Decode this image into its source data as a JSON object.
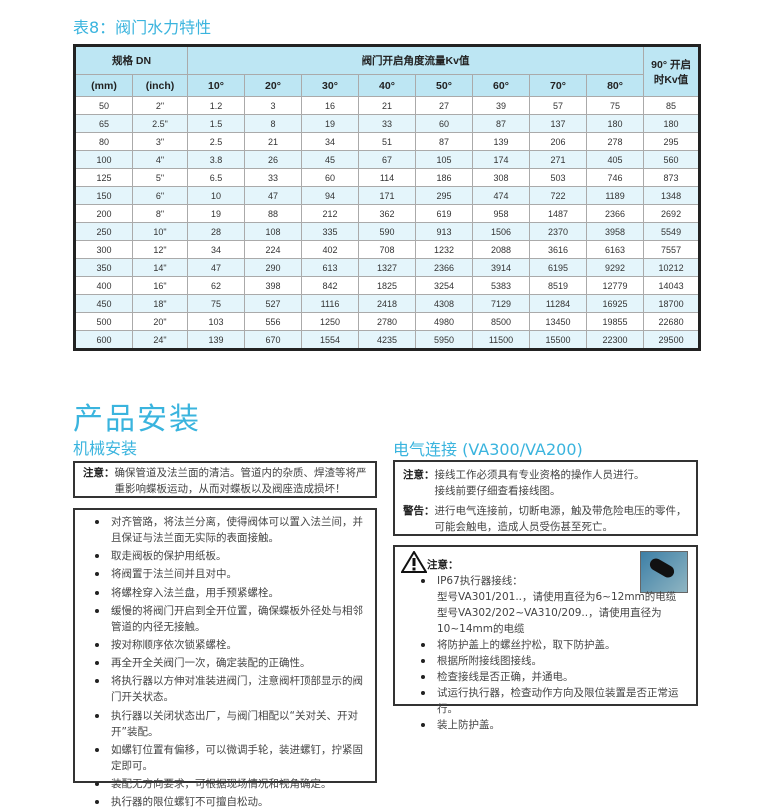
{
  "table": {
    "title": "表8：阀门水力特性",
    "header": {
      "size": "规格 DN",
      "kv": "阀门开启角度流量Kv值",
      "kv90": "90° 开启时Kv值",
      "mm": "(mm)",
      "inch": "(inch)",
      "angles": [
        "10°",
        "20°",
        "30°",
        "40°",
        "50°",
        "60°",
        "70°",
        "80°"
      ]
    },
    "rows": [
      [
        "50",
        "2\"",
        "1.2",
        "3",
        "16",
        "21",
        "27",
        "39",
        "57",
        "75",
        "85"
      ],
      [
        "65",
        "2.5\"",
        "1.5",
        "8",
        "19",
        "33",
        "60",
        "87",
        "137",
        "180",
        "180"
      ],
      [
        "80",
        "3\"",
        "2.5",
        "21",
        "34",
        "51",
        "87",
        "139",
        "206",
        "278",
        "295"
      ],
      [
        "100",
        "4\"",
        "3.8",
        "26",
        "45",
        "67",
        "105",
        "174",
        "271",
        "405",
        "560"
      ],
      [
        "125",
        "5\"",
        "6.5",
        "33",
        "60",
        "114",
        "186",
        "308",
        "503",
        "746",
        "873"
      ],
      [
        "150",
        "6\"",
        "10",
        "47",
        "94",
        "171",
        "295",
        "474",
        "722",
        "1189",
        "1348"
      ],
      [
        "200",
        "8\"",
        "19",
        "88",
        "212",
        "362",
        "619",
        "958",
        "1487",
        "2366",
        "2692"
      ],
      [
        "250",
        "10\"",
        "28",
        "108",
        "335",
        "590",
        "913",
        "1506",
        "2370",
        "3958",
        "5549"
      ],
      [
        "300",
        "12\"",
        "34",
        "224",
        "402",
        "708",
        "1232",
        "2088",
        "3616",
        "6163",
        "7557"
      ],
      [
        "350",
        "14\"",
        "47",
        "290",
        "613",
        "1327",
        "2366",
        "3914",
        "6195",
        "9292",
        "10212"
      ],
      [
        "400",
        "16\"",
        "62",
        "398",
        "842",
        "1825",
        "3254",
        "5383",
        "8519",
        "12779",
        "14043"
      ],
      [
        "450",
        "18\"",
        "75",
        "527",
        "1116",
        "2418",
        "4308",
        "7129",
        "11284",
        "16925",
        "18700"
      ],
      [
        "500",
        "20\"",
        "103",
        "556",
        "1250",
        "2780",
        "4980",
        "8500",
        "13450",
        "19855",
        "22680"
      ],
      [
        "600",
        "24\"",
        "139",
        "670",
        "1554",
        "4235",
        "5950",
        "11500",
        "15500",
        "22300",
        "29500"
      ]
    ]
  },
  "install": {
    "title": "产品安装",
    "mechanical": {
      "title": "机械安装",
      "note_label": "注意：",
      "note": "确保管道及法兰面的清洁。管道内的杂质、焊渣等将严重影响蝶板运动，从而对蝶板以及阀座造成损坏！",
      "steps": [
        "对齐管路，将法兰分离，使得阀体可以置入法兰间，并且保证与法兰面无实际的表面接触。",
        "取走阀板的保护用纸板。",
        "将阀置于法兰间并且对中。",
        "将螺栓穿入法兰盘，用手预紧螺栓。",
        "缓慢的将阀门开启到全开位置，确保蝶板外径处与相邻管道的内径无接触。",
        "按对称顺序依次锁紧螺栓。",
        "再全开全关阀门一次，确定装配的正确性。",
        "将执行器以方伸对准装进阀门，注意阀杆顶部显示的阀门开关状态。",
        "执行器以关闭状态出厂，与阀门相配以“关对关、开对开”装配。",
        "如螺钉位置有偏移，可以微调手轮，装进螺钉，拧紧固定即可。",
        "装配无方向要求，可根据现场情况和视角确定。",
        "执行器的限位螺钉不可擅自松动。"
      ]
    },
    "electrical": {
      "title": "电气连接 (VA300/VA200)",
      "note_label": "注意：",
      "note_lines": [
        "接线工作必须具有专业资格的操作人员进行。",
        "接线前要仔细查看接线图。"
      ],
      "warning_label": "警告：",
      "warning": "进行电气连接前，切断电源，触及带危险电压的零件，可能会触电，造成人员受伤甚至死亡。",
      "caution_label": "注意：",
      "steps": [
        {
          "text": "IP67执行器接线：",
          "sub": [
            "型号VA301/201..，请使用直径为6~12mm的电缆",
            "型号VA302/202~VA310/209..，请使用直径为10~14mm的电缆"
          ]
        },
        {
          "text": "将防护盖上的螺丝拧松，取下防护盖。"
        },
        {
          "text": "根据所附接线图接线。"
        },
        {
          "text": "检查接线是否正确，并通电。"
        },
        {
          "text": "试运行执行器，检查动作方向及限位装置是否正常运行。"
        },
        {
          "text": "装上防护盖。"
        }
      ]
    }
  },
  "colors": {
    "accent": "#3ab4de",
    "header_bg": "#bde6f3",
    "row_alt": "#e4f5fb"
  }
}
